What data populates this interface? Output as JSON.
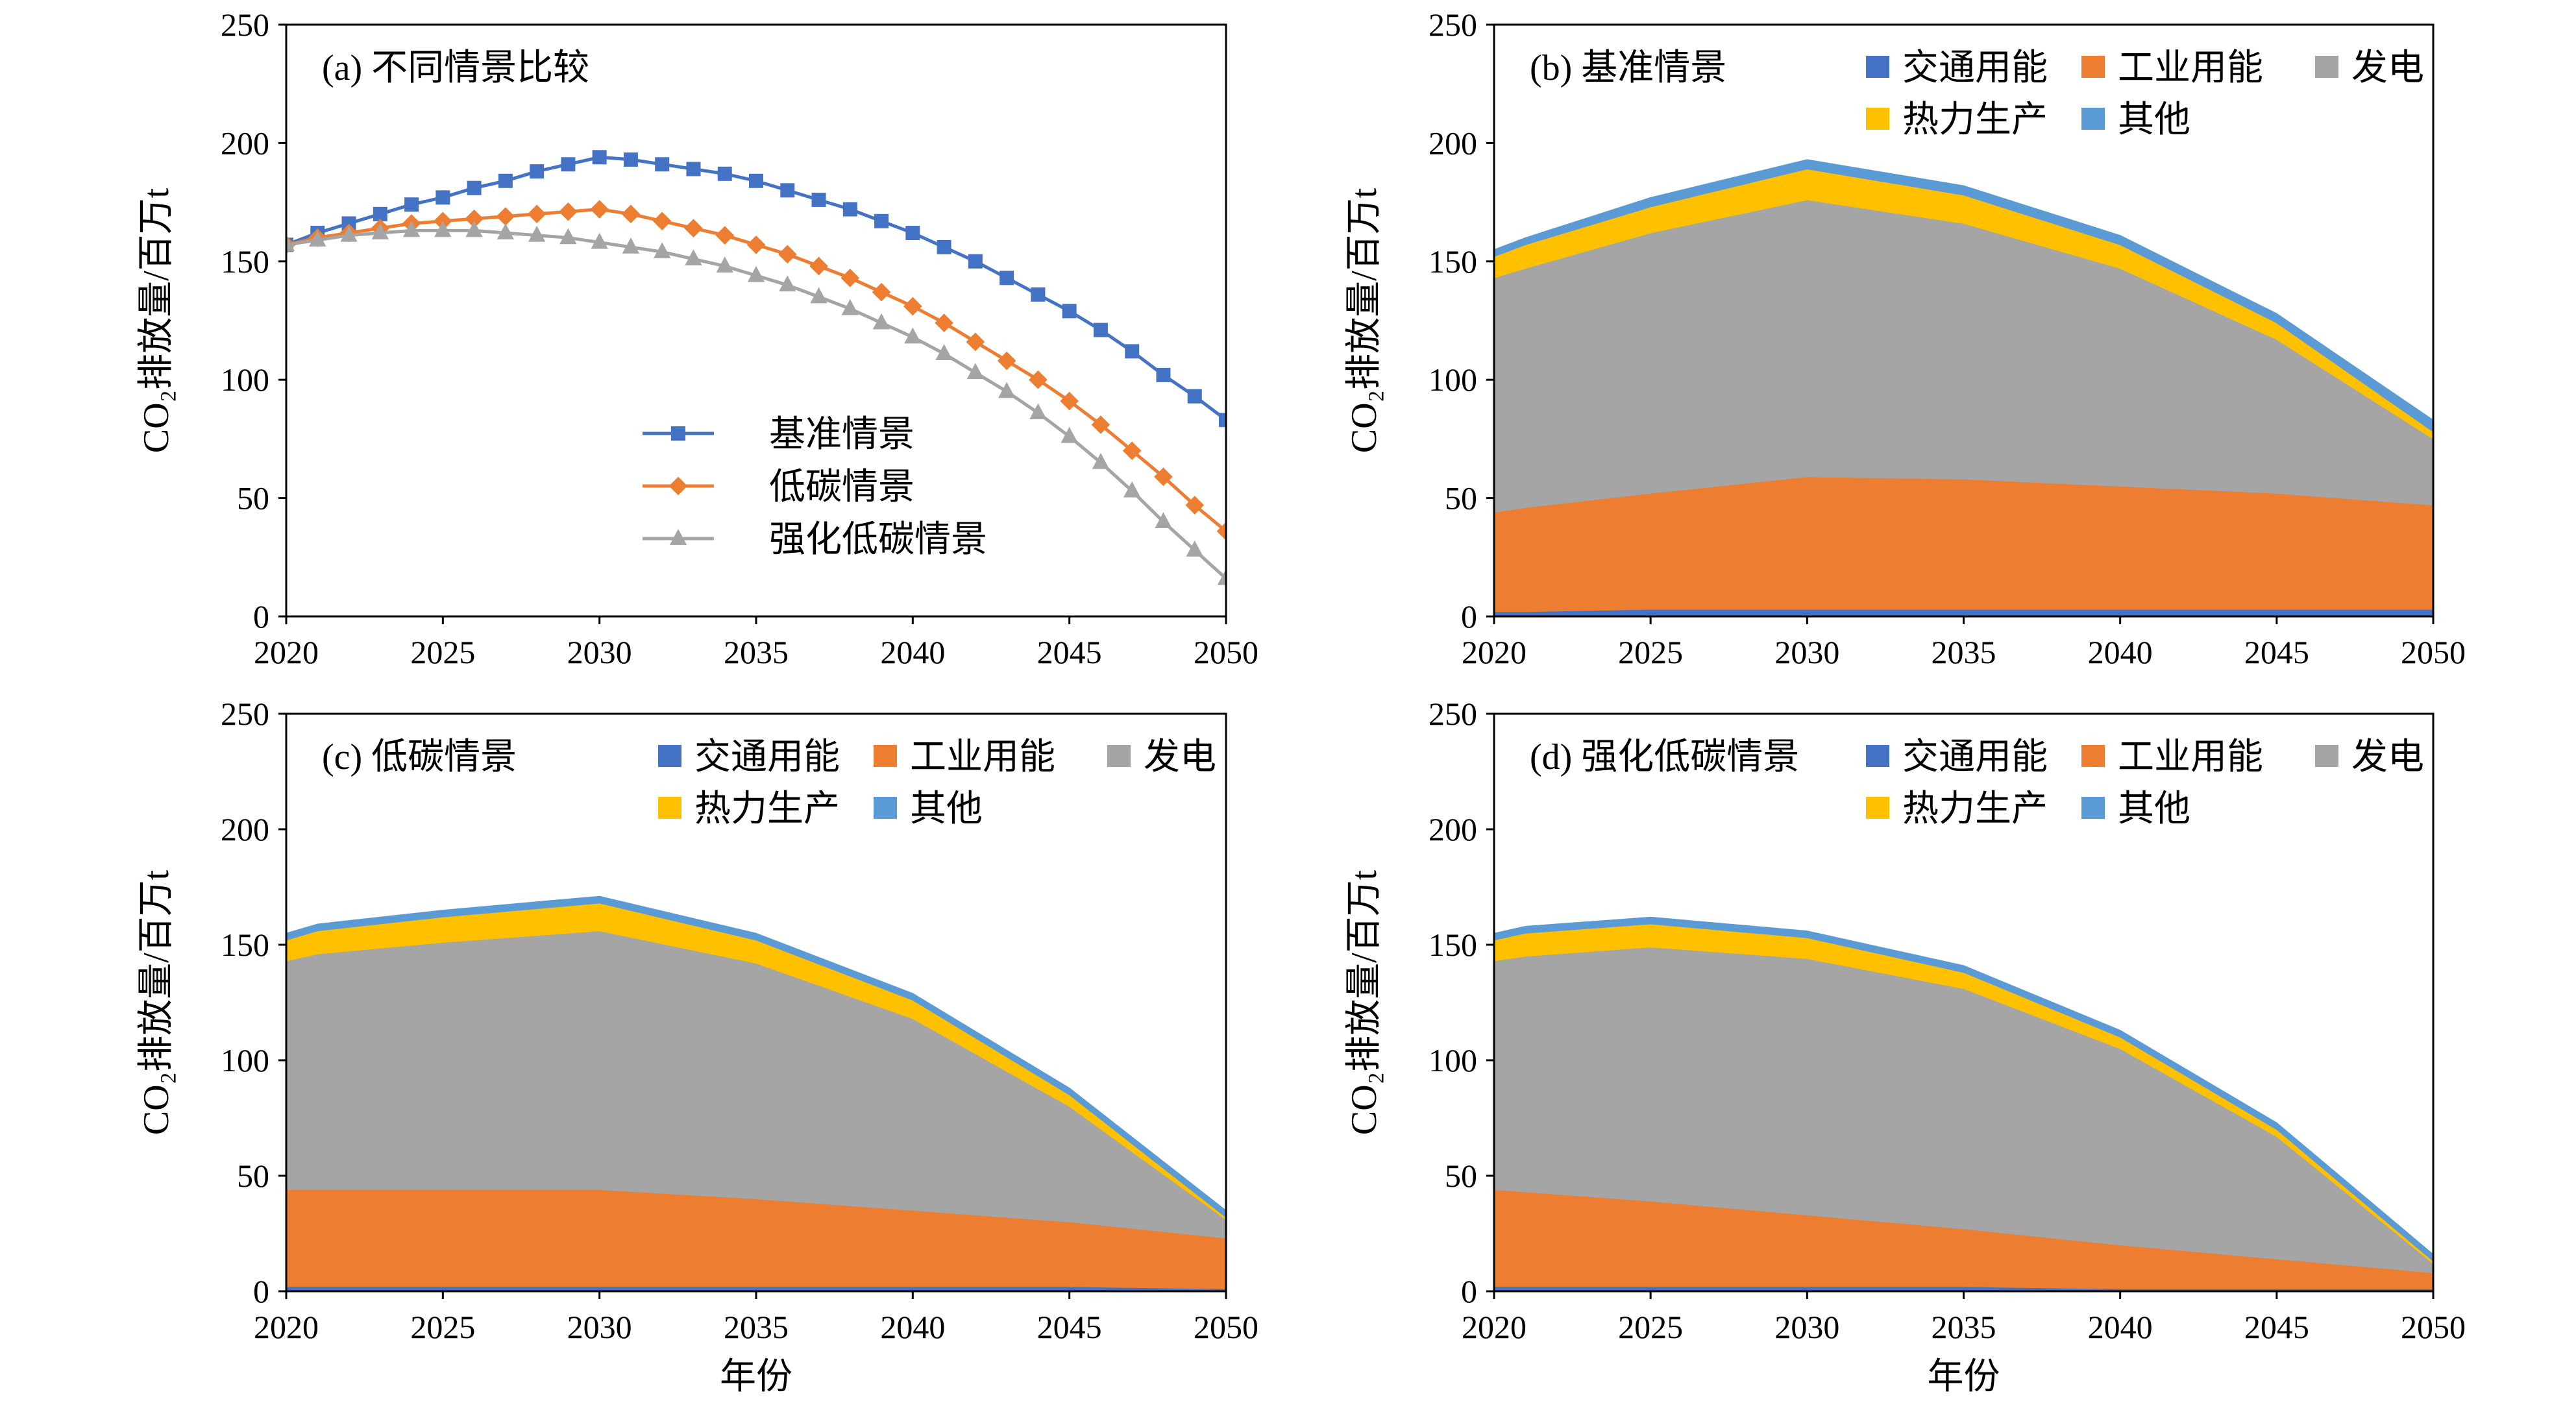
{
  "axis_text": {
    "xlabel": "年份",
    "ylabel": "CO₂排放量/百万t",
    "xticks": [
      "2020",
      "2025",
      "2030",
      "2035",
      "2040",
      "2045",
      "2050"
    ],
    "yticks": [
      "0",
      "50",
      "100",
      "150",
      "200",
      "250"
    ]
  },
  "colors": {
    "baseline": "#4472c4",
    "low_carbon": "#ed7d31",
    "enhanced": "#a5a5a5",
    "transport": "#4472c4",
    "industry": "#ed7d31",
    "power": "#a5a5a5",
    "heat": "#ffc000",
    "other": "#5b9bd5"
  },
  "chart_data": [
    {
      "type": "line",
      "title": "(a) 不同情景比较",
      "xlabel": "",
      "ylabel": "CO₂排放量/百万t",
      "xlim": [
        2020,
        2050
      ],
      "ylim": [
        0,
        250
      ],
      "x": [
        2020,
        2021,
        2022,
        2023,
        2024,
        2025,
        2026,
        2027,
        2028,
        2029,
        2030,
        2031,
        2032,
        2033,
        2034,
        2035,
        2036,
        2037,
        2038,
        2039,
        2040,
        2041,
        2042,
        2043,
        2044,
        2045,
        2046,
        2047,
        2048,
        2049,
        2050
      ],
      "series": [
        {
          "name": "基准情景",
          "marker": "square",
          "values": [
            157,
            162,
            166,
            170,
            174,
            177,
            181,
            184,
            188,
            191,
            194,
            193,
            191,
            189,
            187,
            184,
            180,
            176,
            172,
            167,
            162,
            156,
            150,
            143,
            136,
            129,
            121,
            112,
            102,
            93,
            83
          ]
        },
        {
          "name": "低碳情景",
          "marker": "diamond",
          "values": [
            157,
            160,
            162,
            164,
            166,
            167,
            168,
            169,
            170,
            171,
            172,
            170,
            167,
            164,
            161,
            157,
            153,
            148,
            143,
            137,
            131,
            124,
            116,
            108,
            100,
            91,
            81,
            70,
            59,
            47,
            36
          ]
        },
        {
          "name": "强化低碳情景",
          "marker": "triangle",
          "values": [
            157,
            159,
            161,
            162,
            163,
            163,
            163,
            162,
            161,
            160,
            158,
            156,
            154,
            151,
            148,
            144,
            140,
            135,
            130,
            124,
            118,
            111,
            103,
            95,
            86,
            76,
            65,
            53,
            40,
            28,
            16
          ]
        }
      ],
      "legend": "center-bottom"
    },
    {
      "type": "area",
      "stacked": true,
      "title": "(b) 基准情景",
      "ylabel": "CO₂排放量/百万t",
      "xlim": [
        2020,
        2050
      ],
      "ylim": [
        0,
        250
      ],
      "x": [
        2020,
        2021,
        2025,
        2030,
        2035,
        2040,
        2045,
        2050
      ],
      "series": [
        {
          "name": "交通用能",
          "values": [
            2,
            2,
            3,
            3,
            3,
            3,
            3,
            3
          ]
        },
        {
          "name": "工业用能",
          "values": [
            42,
            44,
            49,
            56,
            55,
            52,
            49,
            44
          ]
        },
        {
          "name": "发电",
          "values": [
            99,
            101,
            110,
            117,
            108,
            92,
            65,
            28
          ]
        },
        {
          "name": "热力生产",
          "values": [
            9,
            10,
            11,
            13,
            12,
            10,
            7,
            3
          ]
        },
        {
          "name": "其他",
          "values": [
            3,
            3,
            4,
            4,
            4,
            4,
            4,
            5
          ]
        }
      ],
      "legend": "top-right"
    },
    {
      "type": "area",
      "stacked": true,
      "title": "(c) 低碳情景",
      "xlabel": "年份",
      "ylabel": "CO₂排放量/百万t",
      "xlim": [
        2020,
        2050
      ],
      "ylim": [
        0,
        250
      ],
      "x": [
        2020,
        2021,
        2025,
        2030,
        2035,
        2040,
        2045,
        2050
      ],
      "series": [
        {
          "name": "交通用能",
          "values": [
            2,
            2,
            2,
            2,
            2,
            2,
            2,
            1
          ]
        },
        {
          "name": "工业用能",
          "values": [
            42,
            42,
            42,
            42,
            38,
            33,
            28,
            22
          ]
        },
        {
          "name": "发电",
          "values": [
            99,
            102,
            107,
            112,
            102,
            83,
            50,
            8
          ]
        },
        {
          "name": "热力生产",
          "values": [
            9,
            10,
            11,
            12,
            10,
            8,
            5,
            1
          ]
        },
        {
          "name": "其他",
          "values": [
            3,
            3,
            3,
            3,
            3,
            3,
            3,
            3
          ]
        }
      ],
      "legend": "top-right"
    },
    {
      "type": "area",
      "stacked": true,
      "title": "(d) 强化低碳情景",
      "xlabel": "年份",
      "ylabel": "CO₂排放量/百万t",
      "xlim": [
        2020,
        2050
      ],
      "ylim": [
        0,
        250
      ],
      "x": [
        2020,
        2021,
        2025,
        2030,
        2035,
        2040,
        2045,
        2050
      ],
      "series": [
        {
          "name": "交通用能",
          "values": [
            2,
            2,
            2,
            2,
            2,
            1,
            1,
            1
          ]
        },
        {
          "name": "工业用能",
          "values": [
            42,
            41,
            37,
            31,
            25,
            19,
            13,
            7
          ]
        },
        {
          "name": "发电",
          "values": [
            99,
            102,
            110,
            111,
            104,
            85,
            53,
            4
          ]
        },
        {
          "name": "热力生产",
          "values": [
            9,
            10,
            10,
            9,
            7,
            5,
            3,
            1
          ]
        },
        {
          "name": "其他",
          "values": [
            3,
            3,
            3,
            3,
            3,
            3,
            3,
            3
          ]
        }
      ],
      "legend": "top-right"
    }
  ]
}
